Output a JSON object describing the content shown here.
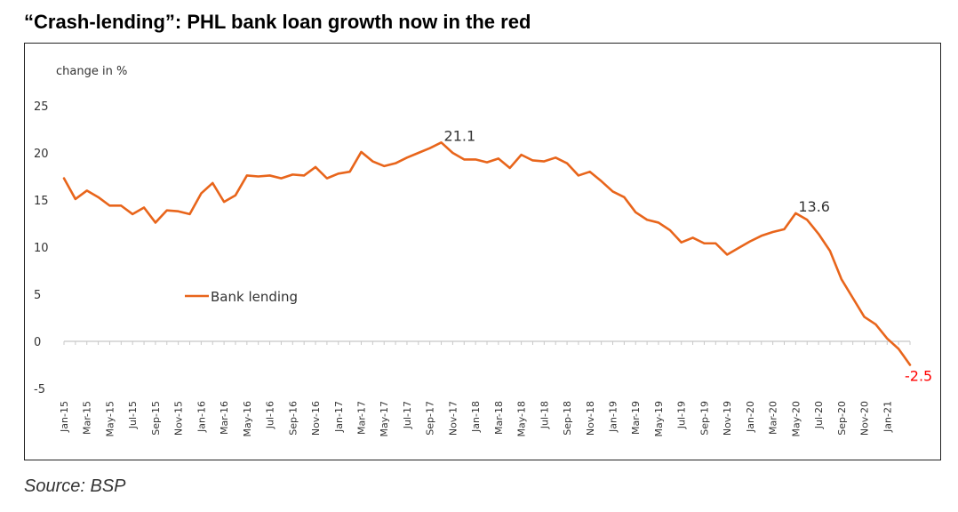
{
  "page": {
    "title": "“Crash-lending”: PHL bank loan growth now in the red",
    "source": "Source: BSP"
  },
  "chart_data": {
    "type": "line",
    "ylabel": "change in %",
    "ylim": [
      -5,
      25
    ],
    "yticks": [
      -5,
      0,
      5,
      10,
      15,
      20,
      25
    ],
    "grid": false,
    "legend_position": "left-middle",
    "color": "#E8651B",
    "label_color_negative": "#FF0000",
    "x_tick_labels": [
      "Jan-15",
      "Mar-15",
      "May-15",
      "Jul-15",
      "Sep-15",
      "Nov-15",
      "Jan-16",
      "Mar-16",
      "May-16",
      "Jul-16",
      "Sep-16",
      "Nov-16",
      "Jan-17",
      "Mar-17",
      "May-17",
      "Jul-17",
      "Sep-17",
      "Nov-17",
      "Jan-18",
      "Mar-18",
      "May-18",
      "Jul-18",
      "Sep-18",
      "Nov-18",
      "Jan-19",
      "Mar-19",
      "May-19",
      "Jul-19",
      "Sep-19",
      "Nov-19",
      "Jan-20",
      "Mar-20",
      "May-20",
      "Jul-20",
      "Sep-20",
      "Nov-20",
      "Jan-21"
    ],
    "series": [
      {
        "name": "Bank lending",
        "values": [
          17.3,
          15.1,
          16.0,
          15.3,
          14.4,
          14.4,
          13.5,
          14.2,
          12.6,
          13.9,
          13.8,
          13.5,
          15.7,
          16.8,
          14.8,
          15.5,
          17.6,
          17.5,
          17.6,
          17.3,
          17.7,
          17.6,
          18.5,
          17.3,
          17.8,
          18.0,
          20.1,
          19.1,
          18.6,
          18.9,
          19.5,
          20.0,
          20.5,
          21.1,
          20.0,
          19.3,
          19.3,
          19.0,
          19.4,
          18.4,
          19.8,
          19.2,
          19.1,
          19.5,
          18.9,
          17.6,
          18.0,
          17.0,
          15.9,
          15.3,
          13.7,
          12.9,
          12.6,
          11.8,
          10.5,
          11.0,
          10.4,
          10.4,
          9.2,
          9.9,
          10.6,
          11.2,
          11.6,
          11.9,
          13.6,
          12.9,
          11.4,
          9.6,
          6.6,
          4.6,
          2.6,
          1.8,
          0.3,
          -0.8,
          -2.5
        ]
      }
    ],
    "annotations": [
      {
        "text": "21.1",
        "index": 33
      },
      {
        "text": "13.6",
        "index": 64
      },
      {
        "text": "-2.5",
        "index": 74
      }
    ]
  }
}
